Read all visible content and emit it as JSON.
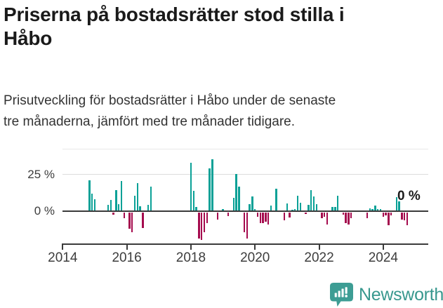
{
  "header": {
    "title_lines": [
      "Priserna på bostadsrätter stod stilla i",
      "Håbo"
    ],
    "subtitle_lines": [
      "Prisutveckling för bostadsrätter i Håbo under de senaste",
      "tre månaderna, jämfört med tre månader tidigare."
    ]
  },
  "chart_data": {
    "type": "bar",
    "title": "Priserna på bostadsrätter stod stilla i Håbo",
    "xlabel": "",
    "ylabel": "",
    "unit": "%",
    "grid": "horizontal",
    "y_axis_labels": [
      "25 %",
      "0 %"
    ],
    "y_gridline_values": [
      25,
      0
    ],
    "ylim": [
      -22,
      42
    ],
    "xlim_years": [
      2014,
      2025.4
    ],
    "x_ticks": [
      {
        "year": 2014,
        "label": "2014"
      },
      {
        "year": 2016,
        "label": "2016"
      },
      {
        "year": 2018,
        "label": "2018"
      },
      {
        "year": 2020,
        "label": "2020"
      },
      {
        "year": 2022,
        "label": "2022"
      },
      {
        "year": 2024,
        "label": "2024"
      }
    ],
    "end_annotation": "0 %",
    "positive_color": "#0ba197",
    "negative_color": "#a50b4e",
    "axis_color": "#3b3b3b",
    "series": [
      {
        "name": "Prisutveckling",
        "points": [
          [
            "2014-11",
            20.6
          ],
          [
            "2014-12",
            12.0
          ],
          [
            "2015-01",
            8.0
          ],
          [
            "2015-06",
            4.1
          ],
          [
            "2015-07",
            7.5
          ],
          [
            "2015-08",
            -1.5
          ],
          [
            "2015-09",
            14.3
          ],
          [
            "2015-10",
            4.9
          ],
          [
            "2015-11",
            20.3
          ],
          [
            "2015-12",
            -3.8
          ],
          [
            "2016-02",
            -11.0
          ],
          [
            "2016-03",
            -13.0
          ],
          [
            "2016-04",
            10.5
          ],
          [
            "2016-05",
            18.7
          ],
          [
            "2016-06",
            3.4
          ],
          [
            "2016-07",
            -10.3
          ],
          [
            "2016-09",
            4.1
          ],
          [
            "2016-10",
            16.6
          ],
          [
            "2018-01",
            32.4
          ],
          [
            "2018-02",
            13.7
          ],
          [
            "2018-03",
            2.9
          ],
          [
            "2018-04",
            -17.4
          ],
          [
            "2018-05",
            -18.2
          ],
          [
            "2018-06",
            -13.4
          ],
          [
            "2018-07",
            -7.0
          ],
          [
            "2018-08",
            28.6
          ],
          [
            "2018-09",
            35.0
          ],
          [
            "2018-11",
            -4.6
          ],
          [
            "2019-01",
            1.4
          ],
          [
            "2019-03",
            -2.5
          ],
          [
            "2019-05",
            8.8
          ],
          [
            "2019-06",
            25.0
          ],
          [
            "2019-07",
            16.7
          ],
          [
            "2019-09",
            -13.4
          ],
          [
            "2019-10",
            -17.4
          ],
          [
            "2019-11",
            4.9
          ],
          [
            "2019-12",
            9.7
          ],
          [
            "2020-01",
            1.2
          ],
          [
            "2020-02",
            -2.7
          ],
          [
            "2020-03",
            -7.1
          ],
          [
            "2020-04",
            -7.1
          ],
          [
            "2020-05",
            -6.3
          ],
          [
            "2020-06",
            -7.9
          ],
          [
            "2020-07",
            4.0
          ],
          [
            "2020-09",
            15.1
          ],
          [
            "2020-12",
            -5.2
          ],
          [
            "2021-01",
            5.1
          ],
          [
            "2021-02",
            -3.1
          ],
          [
            "2021-03",
            0.8
          ],
          [
            "2021-04",
            1.2
          ],
          [
            "2021-05",
            10.3
          ],
          [
            "2021-06",
            5.6
          ],
          [
            "2021-08",
            -1.1
          ],
          [
            "2021-09",
            4.3
          ],
          [
            "2021-10",
            14.3
          ],
          [
            "2021-11",
            10.0
          ],
          [
            "2021-12",
            4.8
          ],
          [
            "2022-02",
            -3.6
          ],
          [
            "2022-03",
            -2.7
          ],
          [
            "2022-04",
            -7.9
          ],
          [
            "2022-06",
            2.7
          ],
          [
            "2022-07",
            2.7
          ],
          [
            "2022-08",
            10.3
          ],
          [
            "2022-10",
            -1.6
          ],
          [
            "2022-11",
            -7.1
          ],
          [
            "2022-12",
            -7.9
          ],
          [
            "2023-01",
            -4.0
          ],
          [
            "2023-07",
            -3.6
          ],
          [
            "2023-08",
            2.1
          ],
          [
            "2023-09",
            1.5
          ],
          [
            "2023-10",
            4.0
          ],
          [
            "2023-11",
            1.6
          ],
          [
            "2023-12",
            1.2
          ],
          [
            "2024-01",
            -2.7
          ],
          [
            "2024-02",
            -2.0
          ],
          [
            "2024-03",
            -8.7
          ],
          [
            "2024-04",
            -2.0
          ],
          [
            "2024-06",
            9.4
          ],
          [
            "2024-07",
            6.5
          ],
          [
            "2024-08",
            -4.5
          ],
          [
            "2024-09",
            -5.2
          ],
          [
            "2024-10",
            -8.5
          ],
          [
            "2024-11",
            0.0
          ]
        ]
      }
    ]
  },
  "footer": {
    "brand": "Newsworthy",
    "brand_color": "#38988e",
    "logo_icon": "bar-chart-speech-bubble-icon"
  }
}
